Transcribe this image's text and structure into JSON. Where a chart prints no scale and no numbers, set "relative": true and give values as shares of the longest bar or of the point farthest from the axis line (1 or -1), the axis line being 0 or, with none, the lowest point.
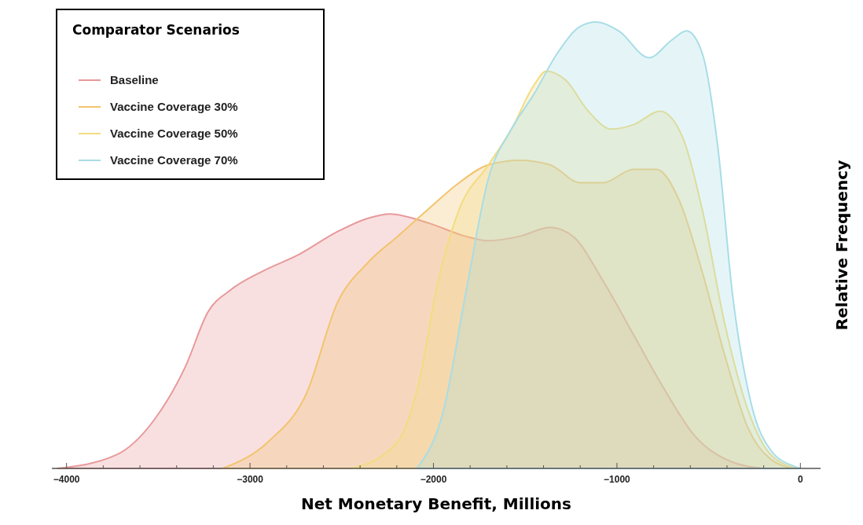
{
  "chart_data": {
    "type": "area",
    "relative": true,
    "xlabel": "Net Monetary Benefit, Millions",
    "ylabel": "Relative Frequency",
    "legend_title": "Comparator Scenarios",
    "legend": "top left",
    "grid": false,
    "xlim": [
      -4080,
      110
    ],
    "xticks": [
      -4000,
      {
        "value": -3800,
        "label": null
      },
      {
        "value": -3600,
        "label": null
      },
      {
        "value": -3400,
        "label": null
      },
      {
        "value": -3200,
        "label": null
      },
      -3000,
      {
        "value": -2800,
        "label": null
      },
      {
        "value": -2600,
        "label": null
      },
      {
        "value": -2400,
        "label": null
      },
      {
        "value": -2200,
        "label": null
      },
      -2000,
      {
        "value": -1800,
        "label": null
      },
      {
        "value": -1600,
        "label": null
      },
      {
        "value": -1400,
        "label": null
      },
      {
        "value": -1200,
        "label": null
      },
      -1000,
      {
        "value": -800,
        "label": null
      },
      {
        "value": -600,
        "label": null
      },
      {
        "value": -400,
        "label": null
      },
      {
        "value": -200,
        "label": null
      },
      0
    ],
    "series": [
      {
        "name": "Baseline",
        "color": "#e8999a",
        "x": [
          -4050,
          -3730,
          -3520,
          -3350,
          -3230,
          -3105,
          -2940,
          -2730,
          -2525,
          -2360,
          -2235,
          -2030,
          -1825,
          -1700,
          -1530,
          -1365,
          -1240,
          -1075,
          -910,
          -745,
          -580,
          -370,
          -205
        ],
        "values": [
          0,
          0.03,
          0.11,
          0.23,
          0.35,
          0.4,
          0.44,
          0.48,
          0.53,
          0.56,
          0.57,
          0.55,
          0.52,
          0.51,
          0.52,
          0.54,
          0.52,
          0.42,
          0.3,
          0.18,
          0.075,
          0.014,
          0
        ]
      },
      {
        "name": "Vaccine Coverage 30%",
        "color": "#f2c46e",
        "x": [
          -3150,
          -2900,
          -2690,
          -2525,
          -2360,
          -2195,
          -2030,
          -1860,
          -1700,
          -1530,
          -1365,
          -1200,
          -1075,
          -910,
          -785,
          -660,
          -535,
          -410,
          -285,
          -160,
          -35
        ],
        "values": [
          0,
          0.06,
          0.17,
          0.37,
          0.46,
          0.52,
          0.58,
          0.64,
          0.68,
          0.69,
          0.68,
          0.64,
          0.64,
          0.67,
          0.67,
          0.6,
          0.44,
          0.25,
          0.09,
          0.02,
          0
        ]
      },
      {
        "name": "Vaccine Coverage 50%",
        "color": "#f3dc80",
        "x": [
          -2440,
          -2195,
          -2070,
          -1985,
          -1860,
          -1700,
          -1575,
          -1450,
          -1385,
          -1280,
          -1155,
          -1030,
          -910,
          -765,
          -640,
          -535,
          -410,
          -285,
          -160,
          -15
        ],
        "values": [
          0,
          0.06,
          0.21,
          0.4,
          0.58,
          0.68,
          0.76,
          0.86,
          0.89,
          0.87,
          0.8,
          0.76,
          0.77,
          0.8,
          0.74,
          0.58,
          0.32,
          0.13,
          0.03,
          0
        ]
      },
      {
        "name": "Vaccine Coverage 70%",
        "color": "#a8dde6",
        "x": [
          -2090,
          -1945,
          -1825,
          -1700,
          -1575,
          -1450,
          -1325,
          -1200,
          -1115,
          -990,
          -825,
          -700,
          -620,
          -535,
          -450,
          -370,
          -265,
          -160,
          -35,
          0
        ],
        "values": [
          0,
          0.13,
          0.39,
          0.65,
          0.76,
          0.84,
          0.93,
          0.99,
          1,
          0.98,
          0.92,
          0.96,
          0.98,
          0.93,
          0.72,
          0.39,
          0.14,
          0.04,
          0.005,
          0
        ]
      }
    ]
  }
}
